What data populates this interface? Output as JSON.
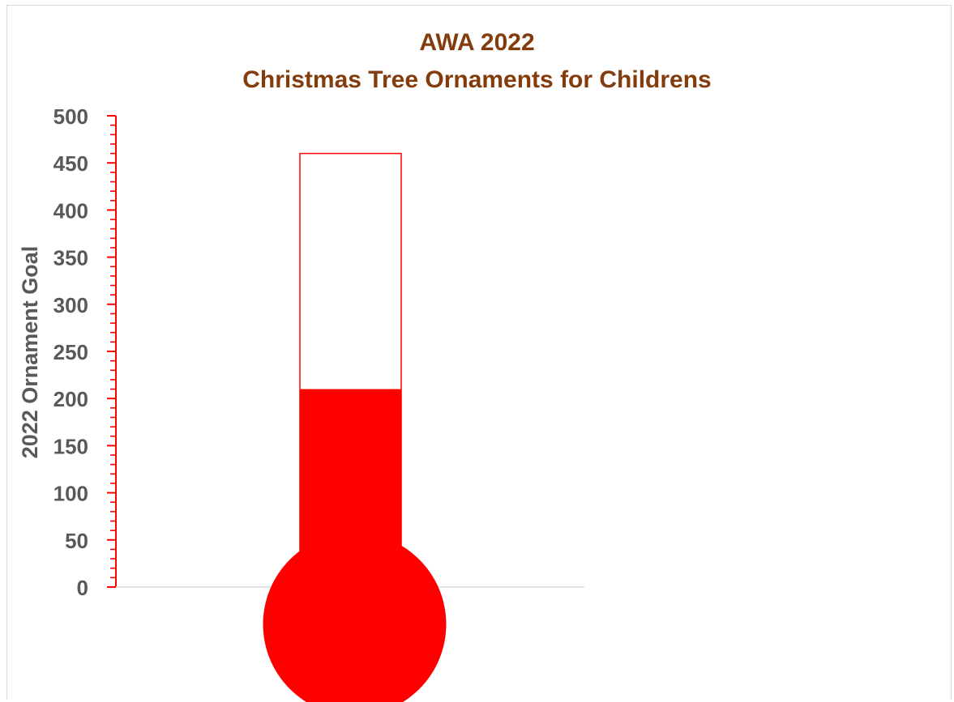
{
  "chart_data": {
    "type": "bar",
    "title_line1": "AWA 2022",
    "title_line2": "Christmas Tree Ornaments for Childrens",
    "xlabel": "",
    "ylabel": "2022  Ornament Goal",
    "ylim": [
      0,
      500
    ],
    "major_step": 50,
    "minor_step": 10,
    "y_ticks": [
      "0",
      "50",
      "100",
      "150",
      "200",
      "250",
      "300",
      "350",
      "400",
      "450",
      "500"
    ],
    "series": [
      {
        "values": [
          460
        ]
      },
      {
        "values": [
          210
        ]
      }
    ],
    "grid": false,
    "legend": "none",
    "colors": {
      "title": "#843c0c",
      "axis_labels": "#595959",
      "axis_line": "#ff0000",
      "fill": "#ff0000",
      "outline": "#ff0000",
      "baseline": "#d9d9d9"
    }
  }
}
